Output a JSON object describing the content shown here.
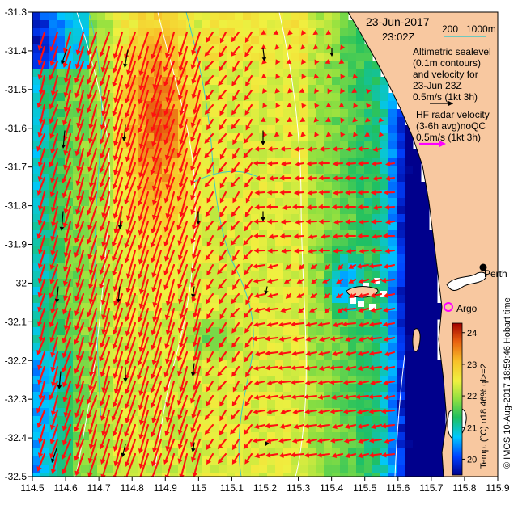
{
  "map": {
    "title_date": "23-Jun-2017",
    "title_time": "23:02Z",
    "isobath_label_200": "200",
    "isobath_label_1000": "1000m",
    "altimetry_legend": [
      "Altimetric sealevel",
      "(0.1m contours)",
      "and velocity for",
      "23-Jun 23Z",
      "0.5m/s (1kt 3h)"
    ],
    "hf_radar_legend": [
      "HF radar velocity",
      "(3-6h avg)noQC",
      "0.5m/s (1kt 3h)"
    ],
    "place_perth": "Perth",
    "place_argo": "Argo",
    "credit": "© IMOS 10-Aug-2017 18:59:46 Hobart time",
    "colorbar_label": "Temp. (°C) n18 46% ql>=2",
    "colorbar_ticks": [
      "24",
      "23",
      "22",
      "21",
      "20"
    ],
    "colors": {
      "land": "#f8c8a0",
      "isobath": "#40c8c8",
      "hf_arrow": "#ff1010",
      "alt_arrow": "#000000",
      "hf_legend_arrow": "#ff00ff",
      "argo": "#ff00ff"
    }
  },
  "chart_data": {
    "type": "heatmap",
    "x_ticks": [
      "114.5",
      "114.6",
      "114.7",
      "114.8",
      "114.9",
      "115",
      "115.1",
      "115.2",
      "115.3",
      "115.4",
      "115.5",
      "115.6",
      "115.7",
      "115.8",
      "115.9"
    ],
    "y_ticks": [
      "-31.3",
      "-31.4",
      "-31.5",
      "-31.6",
      "-31.7",
      "-31.8",
      "-31.9",
      "-32",
      "-32.1",
      "-32.2",
      "-32.3",
      "-32.4",
      "-32.5"
    ],
    "xlim": [
      114.5,
      115.9
    ],
    "ylim": [
      -32.5,
      -31.3
    ],
    "value_range": [
      19.5,
      24.3
    ]
  }
}
